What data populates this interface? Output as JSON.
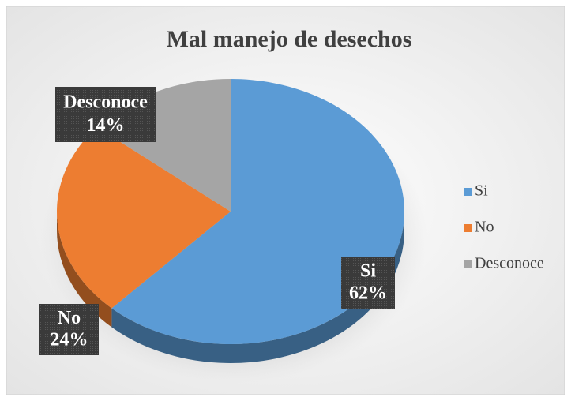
{
  "chart_data": {
    "type": "pie",
    "title": "Mal manejo de desechos",
    "categories": [
      "Si",
      "No",
      "Desconoce"
    ],
    "values": [
      62,
      24,
      14
    ],
    "value_labels": [
      "62%",
      "24%",
      "14%"
    ],
    "colors": [
      "#5b9bd5",
      "#ed7d31",
      "#a5a5a5"
    ],
    "legend": "right"
  }
}
